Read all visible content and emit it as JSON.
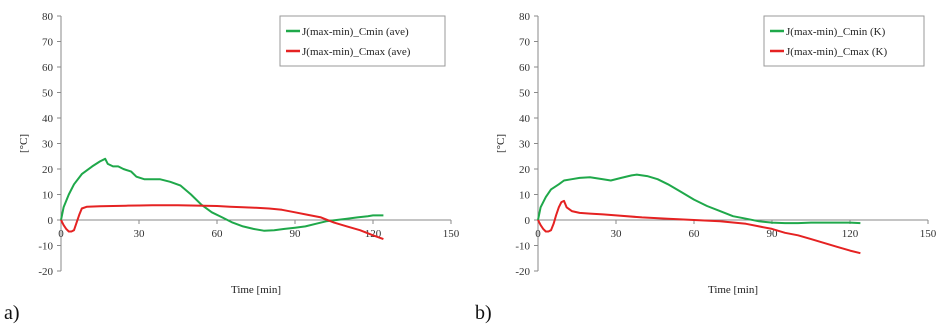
{
  "colors": {
    "green": "#1fa84a",
    "red": "#e52222",
    "axis": "#8a8a8a"
  },
  "chart_data": [
    {
      "type": "line",
      "panel_label": "a)",
      "title": "",
      "xlabel": "Time [min]",
      "ylabel": "[°C]",
      "xlim": [
        0,
        150
      ],
      "ylim": [
        -20,
        80
      ],
      "xticks": [
        0,
        30,
        60,
        90,
        120,
        150
      ],
      "yticks": [
        -20,
        -10,
        0,
        10,
        20,
        30,
        40,
        50,
        60,
        70,
        80
      ],
      "grid": false,
      "legend_position": "top-right",
      "series": [
        {
          "name": "J(max-min)_Cmin (ave)",
          "color": "green",
          "x": [
            0,
            1,
            3,
            5,
            8,
            12,
            15,
            17,
            18,
            20,
            22,
            24,
            27,
            29,
            32,
            38,
            42,
            46,
            50,
            54,
            58,
            62,
            66,
            70,
            74,
            78,
            82,
            86,
            90,
            94,
            98,
            102,
            106,
            110,
            114,
            118,
            120,
            124
          ],
          "y": [
            0,
            5,
            10,
            14,
            18,
            21,
            23,
            24,
            22,
            21,
            21,
            20,
            19,
            17,
            16,
            16,
            15,
            13.5,
            10,
            6,
            3,
            1,
            -1,
            -2.5,
            -3.5,
            -4.2,
            -4,
            -3.5,
            -3,
            -2.5,
            -1.5,
            -0.5,
            0,
            0.5,
            1,
            1.5,
            1.8,
            1.8
          ]
        },
        {
          "name": "J(max-min)_Cmax (ave)",
          "color": "red",
          "x": [
            0,
            1,
            2,
            3,
            4,
            5,
            6,
            7,
            8,
            10,
            15,
            20,
            25,
            30,
            35,
            40,
            45,
            50,
            55,
            60,
            65,
            70,
            75,
            80,
            85,
            90,
            95,
            100,
            105,
            110,
            115,
            120,
            124
          ],
          "y": [
            0,
            -2,
            -3.5,
            -4.5,
            -4.5,
            -4,
            -1,
            2,
            4.5,
            5.2,
            5.4,
            5.5,
            5.6,
            5.7,
            5.8,
            5.8,
            5.8,
            5.7,
            5.6,
            5.5,
            5.2,
            5,
            4.8,
            4.5,
            4,
            3,
            2,
            1,
            -1,
            -2.5,
            -4,
            -6,
            -7.5
          ]
        }
      ]
    },
    {
      "type": "line",
      "panel_label": "b)",
      "title": "",
      "xlabel": "Time [min]",
      "ylabel": "[°C]",
      "xlim": [
        0,
        150
      ],
      "ylim": [
        -20,
        80
      ],
      "xticks": [
        0,
        30,
        60,
        90,
        120,
        150
      ],
      "yticks": [
        -20,
        -10,
        0,
        10,
        20,
        30,
        40,
        50,
        60,
        70,
        80
      ],
      "grid": false,
      "legend_position": "top-right",
      "series": [
        {
          "name": "J(max-min)_Cmin (K)",
          "color": "green",
          "x": [
            0,
            1,
            3,
            5,
            8,
            10,
            13,
            16,
            20,
            25,
            28,
            32,
            36,
            38,
            42,
            46,
            50,
            55,
            60,
            65,
            70,
            75,
            80,
            85,
            90,
            95,
            100,
            105,
            110,
            115,
            120,
            124
          ],
          "y": [
            0,
            5,
            9,
            12,
            14,
            15.5,
            16,
            16.5,
            16.8,
            16,
            15.5,
            16.5,
            17.5,
            17.8,
            17.2,
            16,
            14,
            11,
            8,
            5.5,
            3.5,
            1.5,
            0.5,
            -0.5,
            -1,
            -1.2,
            -1.2,
            -1,
            -1,
            -1,
            -1,
            -1.2
          ]
        },
        {
          "name": "J(max-min)_Cmax (K)",
          "color": "red",
          "x": [
            0,
            1,
            2,
            3,
            4,
            5,
            6,
            7,
            8,
            9,
            10,
            11,
            13,
            16,
            20,
            25,
            30,
            40,
            50,
            60,
            70,
            80,
            85,
            90,
            95,
            100,
            105,
            110,
            115,
            120,
            124
          ],
          "y": [
            0,
            -2,
            -3.5,
            -4.5,
            -4.5,
            -4,
            -1.5,
            2,
            5,
            7,
            7.5,
            5,
            3.5,
            2.8,
            2.5,
            2.2,
            1.8,
            1,
            0.5,
            0,
            -0.5,
            -1.5,
            -2.5,
            -3.5,
            -5,
            -6,
            -7.5,
            -9,
            -10.5,
            -12,
            -13
          ]
        }
      ]
    }
  ]
}
